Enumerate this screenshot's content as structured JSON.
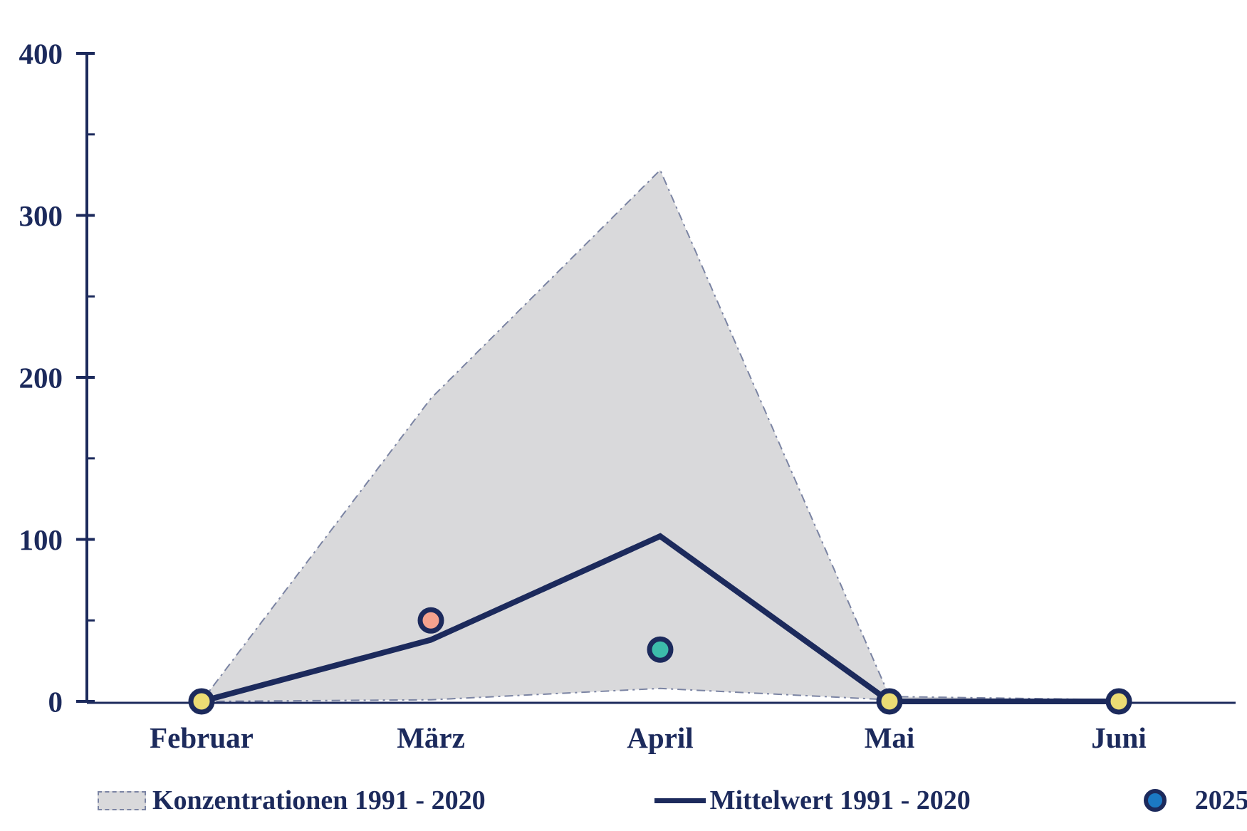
{
  "chart_data": {
    "type": "area",
    "categories": [
      "Februar",
      "März",
      "April",
      "Mai",
      "Juni"
    ],
    "ylim": [
      0,
      400
    ],
    "y_ticks": [
      0,
      100,
      200,
      300,
      400
    ],
    "y_minor_ticks": [
      50,
      150,
      250,
      350
    ],
    "grid": false,
    "legend_position": "bottom",
    "series": [
      {
        "name": "Konzentrationen 1991 - 2020",
        "type": "band",
        "min": [
          0,
          1,
          8,
          1,
          0
        ],
        "max": [
          0,
          187,
          328,
          3,
          1
        ]
      },
      {
        "name": "Mittelwert 1991 - 2020",
        "type": "line",
        "values": [
          0,
          38,
          102,
          0,
          0
        ]
      },
      {
        "name": "2025",
        "type": "scatter",
        "values": [
          0,
          50,
          32,
          0,
          0
        ],
        "point_colors": [
          "#ecdc74",
          "#f5a28e",
          "#3cbcab",
          "#ecdc74",
          "#ecdc74"
        ]
      }
    ]
  },
  "colors": {
    "navy": "#1c2a5c",
    "band_fill": "#d9d9db",
    "band_edge": "#7b84a3",
    "point_yellow": "#ecdc74",
    "point_salmon": "#f5a28e",
    "point_teal": "#3cbcab",
    "legend_2025_blue": "#1b79c4"
  },
  "legend": {
    "items": [
      {
        "label": "Konzentrationen 1991 - 2020"
      },
      {
        "label": "Mittelwert 1991 - 2020"
      },
      {
        "label": "2025"
      }
    ]
  }
}
